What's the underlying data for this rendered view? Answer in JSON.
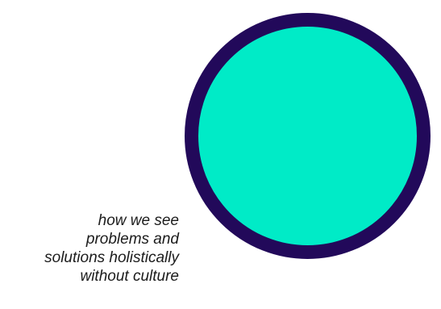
{
  "caption": {
    "lines": [
      "how we see",
      "problems and",
      "solutions holistically",
      "without culture"
    ]
  },
  "colors": {
    "circle_fill": "#00ebc7",
    "circle_border": "#22095a",
    "text": "#1c1c1c",
    "background": "#ffffff"
  }
}
